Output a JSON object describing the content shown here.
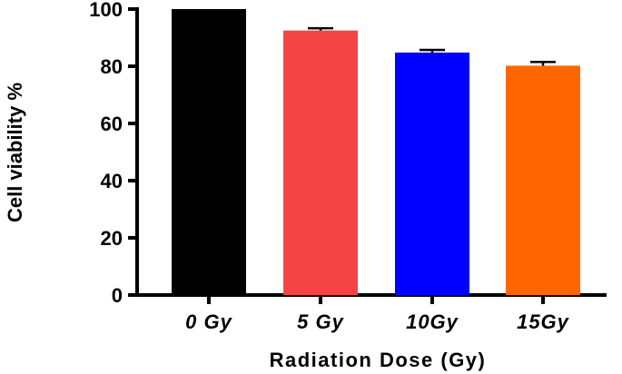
{
  "chart_data": {
    "type": "bar",
    "categories": [
      "0 Gy",
      "5 Gy",
      "10Gy",
      "15Gy"
    ],
    "values": [
      100,
      92.5,
      84.8,
      80.2
    ],
    "error": [
      0,
      0.8,
      0.9,
      1.3
    ],
    "colors": [
      "#000000",
      "#f44444",
      "#0000ff",
      "#ff6600"
    ],
    "title": "",
    "xlabel": "Radiation Dose (Gy)",
    "ylabel": "Cell viability %",
    "ylim": [
      0,
      100
    ],
    "yticks": [
      "0",
      "20",
      "40",
      "60",
      "80",
      "100"
    ],
    "grid": false
  }
}
